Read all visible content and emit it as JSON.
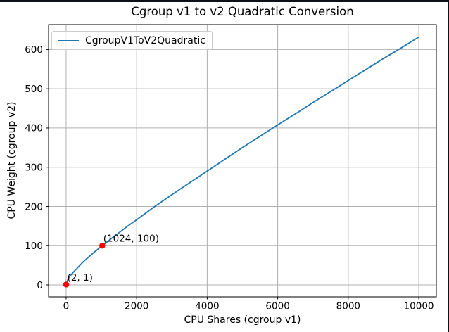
{
  "window": {
    "edge_color": "#0d1117",
    "background": "#ffffff"
  },
  "chart_data": {
    "type": "line",
    "title": "Cgroup v1 to v2 Quadratic Conversion",
    "xlabel": "CPU Shares (cgroup v1)",
    "ylabel": "CPU Weight (cgroup v2)",
    "xlim": [
      -498,
      10498
    ],
    "ylim": [
      -30.5,
      663.5
    ],
    "xticks": [
      0,
      2000,
      4000,
      6000,
      8000,
      10000
    ],
    "yticks": [
      0,
      100,
      200,
      300,
      400,
      500,
      600
    ],
    "grid": true,
    "grid_color": "#b0b0b0",
    "axis_color": "#000000",
    "tick_label_color": "#000000",
    "legend": {
      "position": "upper left",
      "entries": [
        {
          "label": "CgroupV1ToV2Quadratic",
          "color": "#1f77b4"
        }
      ]
    },
    "series": [
      {
        "name": "CgroupV1ToV2Quadratic",
        "color": "#1f77b4",
        "points": [
          [
            2,
            1
          ],
          [
            50,
            14
          ],
          [
            100,
            21
          ],
          [
            150,
            27
          ],
          [
            200,
            32
          ],
          [
            250,
            37
          ],
          [
            500,
            60
          ],
          [
            750,
            80
          ],
          [
            1024,
            100
          ],
          [
            1250,
            116
          ],
          [
            1500,
            133
          ],
          [
            1750,
            150
          ],
          [
            2000,
            166
          ],
          [
            2500,
            199
          ],
          [
            3000,
            230
          ],
          [
            3500,
            260
          ],
          [
            4000,
            290
          ],
          [
            4500,
            320
          ],
          [
            5000,
            350
          ],
          [
            5500,
            379
          ],
          [
            6000,
            408
          ],
          [
            6500,
            436
          ],
          [
            7000,
            465
          ],
          [
            7500,
            493
          ],
          [
            8000,
            521
          ],
          [
            8500,
            549
          ],
          [
            9000,
            577
          ],
          [
            9500,
            604
          ],
          [
            10000,
            632
          ]
        ]
      }
    ],
    "annotations": [
      {
        "x": 2,
        "y": 1,
        "label": "(2, 1)",
        "marker_color": "#ff0000"
      },
      {
        "x": 1024,
        "y": 100,
        "label": "(1024, 100)",
        "marker_color": "#ff0000"
      }
    ]
  }
}
